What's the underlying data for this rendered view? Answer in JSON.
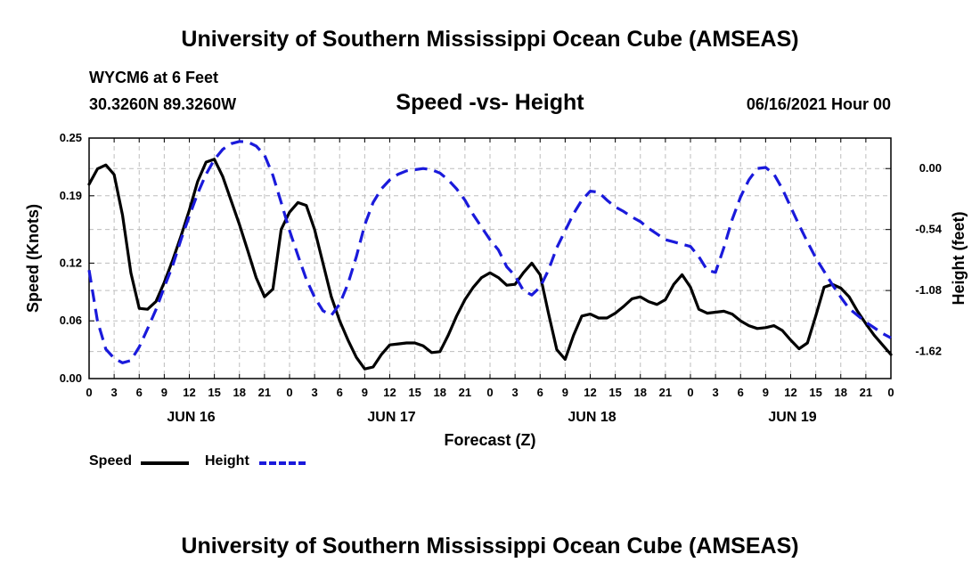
{
  "header": {
    "title": "University of Southern Mississippi Ocean Cube (AMSEAS)",
    "station": "WYCM6 at 6 Feet",
    "coords": "30.3260N  89.3260W",
    "subtitle": "Speed -vs- Height",
    "datetime": "06/16/2021 Hour 00"
  },
  "footer": {
    "title": "University of Southern Mississippi Ocean Cube (AMSEAS)"
  },
  "legend": {
    "speed_label": "Speed",
    "height_label": "Height"
  },
  "chart_data": {
    "type": "line",
    "title": "Speed -vs- Height",
    "xlabel": "Forecast (Z)",
    "ylabel": "Speed (Knots)",
    "y2label": "Height (feet)",
    "xlim": [
      0,
      96
    ],
    "ylim": [
      0,
      0.25
    ],
    "y2lim": [
      -1.86,
      0.27
    ],
    "grid": true,
    "legend_position": "bottom-left",
    "x_ticks": [
      0,
      3,
      6,
      9,
      12,
      15,
      18,
      21,
      24,
      27,
      30,
      33,
      36,
      39,
      42,
      45,
      48,
      51,
      54,
      57,
      60,
      63,
      66,
      69,
      72,
      75,
      78,
      81,
      84,
      87,
      90,
      93,
      96
    ],
    "x_tick_labels": [
      "0",
      "3",
      "6",
      "9",
      "12",
      "15",
      "18",
      "21",
      "0",
      "3",
      "6",
      "9",
      "12",
      "15",
      "18",
      "21",
      "0",
      "3",
      "6",
      "9",
      "12",
      "15",
      "18",
      "21",
      "0",
      "3",
      "6",
      "9",
      "12",
      "15",
      "18",
      "21",
      "0"
    ],
    "date_labels": [
      {
        "x": 12,
        "label": "JUN 16"
      },
      {
        "x": 36,
        "label": "JUN 17"
      },
      {
        "x": 60,
        "label": "JUN 18"
      },
      {
        "x": 84,
        "label": "JUN 19"
      }
    ],
    "y_ticks": [
      0.0,
      0.06,
      0.12,
      0.19,
      0.25
    ],
    "y_tick_labels": [
      "0.00",
      "0.06",
      "0.12",
      "0.19",
      "0.25"
    ],
    "y2_ticks": [
      0.0,
      -0.54,
      -1.08,
      -1.62
    ],
    "y2_tick_labels": [
      "0.00",
      "-0.54",
      "-1.08",
      "-1.62"
    ],
    "series": [
      {
        "name": "Speed",
        "axis": "left",
        "color": "#000000",
        "style": "solid",
        "x": [
          0,
          1,
          2,
          3,
          4,
          5,
          6,
          7,
          8,
          9,
          10,
          11,
          12,
          13,
          14,
          15,
          16,
          17,
          18,
          19,
          20,
          21,
          22,
          23,
          24,
          25,
          26,
          27,
          28,
          29,
          30,
          31,
          32,
          33,
          34,
          35,
          36,
          37,
          38,
          39,
          40,
          41,
          42,
          43,
          44,
          45,
          46,
          47,
          48,
          49,
          50,
          51,
          52,
          53,
          54,
          55,
          56,
          57,
          58,
          59,
          60,
          61,
          62,
          63,
          64,
          65,
          66,
          67,
          68,
          69,
          70,
          71,
          72,
          73,
          74,
          75,
          76,
          77,
          78,
          79,
          80,
          81,
          82,
          83,
          84,
          85,
          86,
          87,
          88,
          89,
          90,
          91,
          92,
          93,
          94,
          95,
          96
        ],
        "y": [
          0.202,
          0.218,
          0.222,
          0.212,
          0.17,
          0.11,
          0.073,
          0.072,
          0.08,
          0.1,
          0.123,
          0.148,
          0.175,
          0.205,
          0.225,
          0.228,
          0.21,
          0.185,
          0.16,
          0.133,
          0.105,
          0.085,
          0.093,
          0.155,
          0.173,
          0.183,
          0.18,
          0.155,
          0.12,
          0.085,
          0.06,
          0.04,
          0.022,
          0.01,
          0.012,
          0.025,
          0.035,
          0.036,
          0.037,
          0.037,
          0.034,
          0.027,
          0.028,
          0.045,
          0.065,
          0.082,
          0.095,
          0.105,
          0.11,
          0.105,
          0.097,
          0.098,
          0.11,
          0.12,
          0.108,
          0.068,
          0.03,
          0.02,
          0.045,
          0.065,
          0.067,
          0.063,
          0.063,
          0.068,
          0.075,
          0.083,
          0.085,
          0.08,
          0.077,
          0.082,
          0.098,
          0.108,
          0.095,
          0.072,
          0.068,
          0.069,
          0.07,
          0.067,
          0.06,
          0.055,
          0.052,
          0.053,
          0.055,
          0.05,
          0.04,
          0.031,
          0.037,
          0.065,
          0.095,
          0.098,
          0.094,
          0.085,
          0.07,
          0.057,
          0.045,
          0.035,
          0.025
        ]
      },
      {
        "name": "Height",
        "axis": "right",
        "color": "#1a1adb",
        "style": "dashed",
        "x": [
          0,
          1,
          2,
          3,
          4,
          5,
          6,
          7,
          8,
          9,
          10,
          11,
          12,
          13,
          14,
          15,
          16,
          17,
          18,
          19,
          20,
          21,
          22,
          23,
          24,
          25,
          26,
          27,
          28,
          29,
          30,
          31,
          32,
          33,
          34,
          35,
          36,
          37,
          38,
          39,
          40,
          41,
          42,
          43,
          44,
          45,
          46,
          47,
          48,
          49,
          50,
          51,
          52,
          53,
          54,
          55,
          56,
          57,
          58,
          59,
          60,
          61,
          62,
          63,
          64,
          65,
          66,
          67,
          68,
          69,
          70,
          71,
          72,
          73,
          74,
          75,
          76,
          77,
          78,
          79,
          80,
          81,
          82,
          83,
          84,
          85,
          86,
          87,
          88,
          89,
          90,
          91,
          92,
          93,
          94,
          95,
          96
        ],
        "y": [
          -0.9,
          -1.35,
          -1.6,
          -1.68,
          -1.72,
          -1.7,
          -1.58,
          -1.42,
          -1.25,
          -1.05,
          -0.86,
          -0.63,
          -0.42,
          -0.22,
          -0.05,
          0.08,
          0.17,
          0.22,
          0.24,
          0.235,
          0.2,
          0.12,
          -0.06,
          -0.3,
          -0.55,
          -0.77,
          -0.98,
          -1.14,
          -1.26,
          -1.3,
          -1.2,
          -1.02,
          -0.78,
          -0.5,
          -0.3,
          -0.18,
          -0.1,
          -0.05,
          -0.02,
          -0.01,
          0.0,
          -0.01,
          -0.04,
          -0.1,
          -0.18,
          -0.28,
          -0.41,
          -0.52,
          -0.63,
          -0.72,
          -0.87,
          -0.95,
          -1.08,
          -1.12,
          -1.05,
          -0.9,
          -0.7,
          -0.55,
          -0.4,
          -0.28,
          -0.2,
          -0.21,
          -0.28,
          -0.34,
          -0.38,
          -0.43,
          -0.47,
          -0.53,
          -0.58,
          -0.63,
          -0.65,
          -0.67,
          -0.69,
          -0.78,
          -0.9,
          -0.92,
          -0.7,
          -0.45,
          -0.25,
          -0.1,
          0.0,
          0.01,
          -0.05,
          -0.18,
          -0.34,
          -0.5,
          -0.65,
          -0.79,
          -0.91,
          -1.03,
          -1.14,
          -1.24,
          -1.3,
          -1.36,
          -1.41,
          -1.46,
          -1.5
        ]
      }
    ]
  }
}
